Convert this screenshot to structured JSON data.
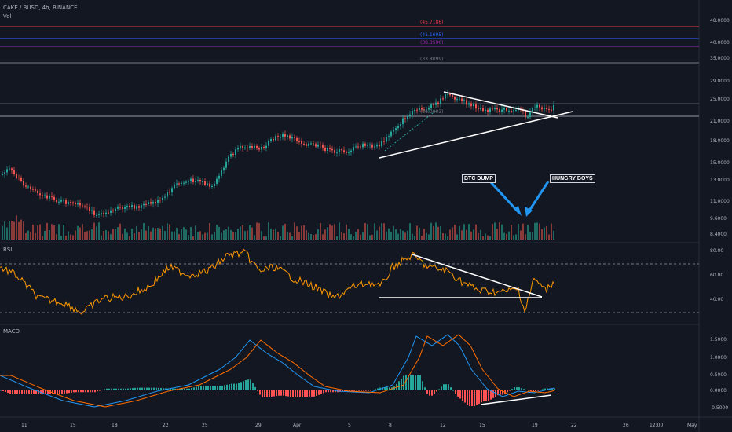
{
  "header": {
    "symbol": "CAKE / BUSD, 4h, BINANCE",
    "volume_label": "Vol"
  },
  "panes": {
    "rsi_label": "RSI",
    "macd_label": "MACD"
  },
  "price_axis": {
    "ticks": [
      "48.0000",
      "40.0000",
      "35.0000",
      "29.0000",
      "25.0000",
      "21.0000",
      "18.0000",
      "15.0000",
      "13.0000",
      "11.0000",
      "9.6000",
      "8.4000"
    ]
  },
  "rsi_axis": {
    "ticks": [
      "80.00",
      "60.00",
      "40.00"
    ]
  },
  "macd_axis": {
    "ticks": [
      "1.5000",
      "1.0000",
      "0.5000",
      "0.0000",
      "-0.5000"
    ]
  },
  "x_axis": {
    "ticks": [
      "11",
      "15",
      "18",
      "22",
      "25",
      "29",
      "Apr",
      "5",
      "8",
      "12",
      "15",
      "19",
      "22",
      "26",
      "12:00",
      "May"
    ]
  },
  "levels": {
    "l1": "(45.7186)",
    "l2": "(41.1695)",
    "l3": "(38.3590)",
    "l4": "(33.8099)",
    "l5": "(26.0003)"
  },
  "annotations": {
    "btc_dump": "BTC DUMP",
    "hungry_boys": "HUNGRY BOYS"
  },
  "colors": {
    "background": "#131722",
    "up": "#26a69a",
    "down": "#ef5350",
    "rsi": "#ff9800",
    "macd_line": "#2196f3",
    "signal_line": "#ff6d00",
    "level_red": "#f23645",
    "level_blue": "#2962ff",
    "level_purple": "#9c27b0",
    "level_gray": "#787b86"
  }
}
